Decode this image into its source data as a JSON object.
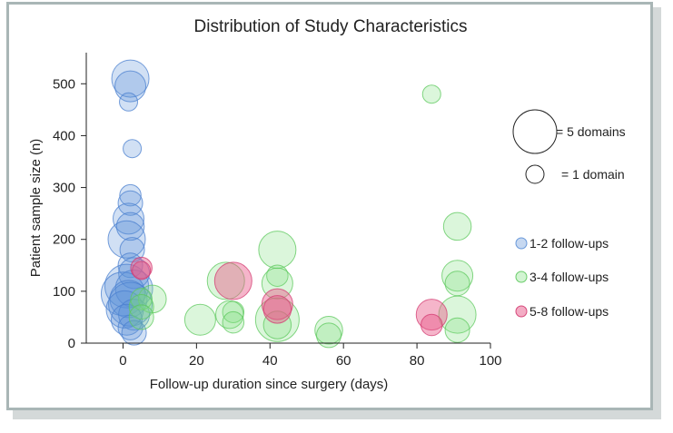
{
  "chart_data": {
    "type": "scatter",
    "title": "Distribution of Study Characteristics",
    "xlabel": "Follow-up duration since surgery (days)",
    "ylabel": "Patient sample size (n)",
    "xlim": [
      -10,
      100
    ],
    "ylim": [
      0,
      560
    ],
    "xticks": [
      0,
      20,
      40,
      60,
      80,
      100
    ],
    "yticks": [
      0,
      100,
      200,
      300,
      400,
      500
    ],
    "size_variable": "domains",
    "size_legend": [
      {
        "domains": 5,
        "label": "= 5 domains"
      },
      {
        "domains": 1,
        "label": "= 1 domain"
      }
    ],
    "series": [
      {
        "name": "1-2 follow-ups",
        "color": "#5b8fd6",
        "points": [
          {
            "x": 2,
            "y": 510,
            "d": 4
          },
          {
            "x": 2,
            "y": 495,
            "d": 3
          },
          {
            "x": 1.5,
            "y": 465,
            "d": 1
          },
          {
            "x": 2.5,
            "y": 375,
            "d": 1
          },
          {
            "x": 2,
            "y": 285,
            "d": 1.5
          },
          {
            "x": 2,
            "y": 270,
            "d": 2
          },
          {
            "x": 1.5,
            "y": 240,
            "d": 3
          },
          {
            "x": 2,
            "y": 225,
            "d": 2.5
          },
          {
            "x": 1,
            "y": 200,
            "d": 4
          },
          {
            "x": 2.5,
            "y": 180,
            "d": 2
          },
          {
            "x": 2,
            "y": 150,
            "d": 2
          },
          {
            "x": 3,
            "y": 135,
            "d": 3
          },
          {
            "x": 1,
            "y": 110,
            "d": 5
          },
          {
            "x": 3,
            "y": 105,
            "d": 4
          },
          {
            "x": 0,
            "y": 95,
            "d": 5
          },
          {
            "x": 1.5,
            "y": 85,
            "d": 4
          },
          {
            "x": 2,
            "y": 75,
            "d": 5
          },
          {
            "x": 0.5,
            "y": 65,
            "d": 4
          },
          {
            "x": 3,
            "y": 55,
            "d": 3
          },
          {
            "x": 1,
            "y": 45,
            "d": 3
          },
          {
            "x": 2,
            "y": 30,
            "d": 2
          },
          {
            "x": 3,
            "y": 20,
            "d": 2
          }
        ]
      },
      {
        "name": "3-4 follow-ups",
        "color": "#7ee07e",
        "points": [
          {
            "x": 84,
            "y": 480,
            "d": 1
          },
          {
            "x": 91,
            "y": 225,
            "d": 2.5
          },
          {
            "x": 42,
            "y": 180,
            "d": 4
          },
          {
            "x": 42,
            "y": 130,
            "d": 1.5
          },
          {
            "x": 91,
            "y": 130,
            "d": 3
          },
          {
            "x": 28,
            "y": 120,
            "d": 4
          },
          {
            "x": 42,
            "y": 115,
            "d": 3
          },
          {
            "x": 91,
            "y": 115,
            "d": 2
          },
          {
            "x": 8,
            "y": 85,
            "d": 2.5
          },
          {
            "x": 5,
            "y": 85,
            "d": 1.5
          },
          {
            "x": 5,
            "y": 70,
            "d": 2
          },
          {
            "x": 30,
            "y": 60,
            "d": 1.5
          },
          {
            "x": 29,
            "y": 55,
            "d": 2.5
          },
          {
            "x": 91,
            "y": 55,
            "d": 4
          },
          {
            "x": 5,
            "y": 50,
            "d": 2
          },
          {
            "x": 21,
            "y": 45,
            "d": 3
          },
          {
            "x": 30,
            "y": 40,
            "d": 1.5
          },
          {
            "x": 42,
            "y": 45,
            "d": 5
          },
          {
            "x": 42,
            "y": 35,
            "d": 2.5
          },
          {
            "x": 56,
            "y": 25,
            "d": 2.5
          },
          {
            "x": 56,
            "y": 15,
            "d": 2
          },
          {
            "x": 91,
            "y": 25,
            "d": 2
          }
        ]
      },
      {
        "name": "5-8 follow-ups",
        "color": "#e85a8a",
        "points": [
          {
            "x": 5,
            "y": 145,
            "d": 1.5
          },
          {
            "x": 5,
            "y": 140,
            "d": 1
          },
          {
            "x": 30,
            "y": 120,
            "d": 4
          },
          {
            "x": 42,
            "y": 75,
            "d": 3
          },
          {
            "x": 42,
            "y": 65,
            "d": 2.5
          },
          {
            "x": 84,
            "y": 55,
            "d": 3
          },
          {
            "x": 84,
            "y": 35,
            "d": 1.5
          }
        ]
      }
    ]
  }
}
